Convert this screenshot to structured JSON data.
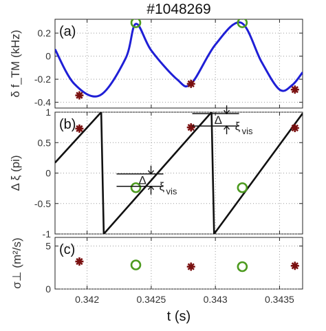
{
  "chart_data": [
    {
      "panel": "(a)",
      "type": "line",
      "title": "#1048269",
      "ylabel": "δ f_TM (kHz)",
      "ylim": [
        -0.45,
        0.32
      ],
      "xlim": [
        0.34175,
        0.34368
      ],
      "yticks": [
        -0.4,
        -0.2,
        0,
        0.2
      ],
      "yticklabels": [
        "-0.4",
        "-0.2",
        "0",
        "0.2"
      ],
      "grid": true,
      "series": [
        {
          "style": "line",
          "color": "#1f1fd6",
          "x": [
            0.34175,
            0.3419,
            0.3421,
            0.3423,
            0.34238,
            0.3425,
            0.3427,
            0.34281,
            0.343,
            0.3432,
            0.34336,
            0.3435,
            0.3436,
            0.34368
          ],
          "y": [
            0.06,
            -0.24,
            -0.34,
            -0.02,
            0.28,
            0.05,
            -0.2,
            -0.24,
            0.1,
            0.29,
            -0.05,
            -0.29,
            -0.25,
            -0.14
          ]
        },
        {
          "style": "star-marker",
          "color": "#7a1010",
          "x": [
            0.34194,
            0.34281,
            0.34362
          ],
          "y": [
            -0.34,
            -0.24,
            -0.29
          ]
        },
        {
          "style": "circle-marker",
          "color": "#4c9a1e",
          "x": [
            0.34238,
            0.34321
          ],
          "y": [
            0.29,
            0.29
          ]
        }
      ]
    },
    {
      "panel": "(b)",
      "type": "line",
      "ylabel": "Δ ξ (pi)",
      "ylim": [
        -1,
        1
      ],
      "xlim": [
        0.34175,
        0.34368
      ],
      "yticks": [
        -1,
        -0.5,
        0,
        0.5,
        1
      ],
      "yticklabels": [
        "-1",
        "-0.5",
        "0",
        "0.5",
        "1"
      ],
      "grid": true,
      "series": [
        {
          "style": "line",
          "color": "#111111",
          "x": [
            0.34175,
            0.34211,
            0.34213,
            0.34297,
            0.34299,
            0.34368
          ],
          "y": [
            0.17,
            1,
            -1,
            1,
            -1,
            0.98
          ]
        },
        {
          "style": "star-marker",
          "color": "#7a1010",
          "x": [
            0.34194,
            0.34281,
            0.34362
          ],
          "y": [
            0.73,
            0.75,
            0.74
          ]
        },
        {
          "style": "circle-marker",
          "color": "#4c9a1e",
          "x": [
            0.34238,
            0.34321
          ],
          "y": [
            -0.24,
            -0.24
          ]
        }
      ],
      "annotations": [
        "Δ",
        "ξ",
        "vis",
        "Δ",
        "ξ",
        "vis"
      ]
    },
    {
      "panel": "(c)",
      "type": "scatter",
      "ylabel": "σ⊥ (m²/s)",
      "ylim": [
        0,
        6
      ],
      "xlim": [
        0.34175,
        0.34368
      ],
      "yticks": [
        0,
        5
      ],
      "yticklabels": [
        "0",
        "5"
      ],
      "grid": true,
      "xlabel": "t (s)",
      "xticks": [
        0.342,
        0.3425,
        0.343,
        0.3435
      ],
      "xticklabels": [
        "0.342",
        "0.3425",
        "0.343",
        "0.3435"
      ],
      "series": [
        {
          "style": "star-marker",
          "color": "#7a1010",
          "x": [
            0.34194,
            0.34281,
            0.34362
          ],
          "y": [
            3.2,
            2.6,
            2.7
          ]
        },
        {
          "style": "circle-marker",
          "color": "#4c9a1e",
          "x": [
            0.34238,
            0.34321
          ],
          "y": [
            2.8,
            2.6
          ]
        }
      ]
    }
  ]
}
